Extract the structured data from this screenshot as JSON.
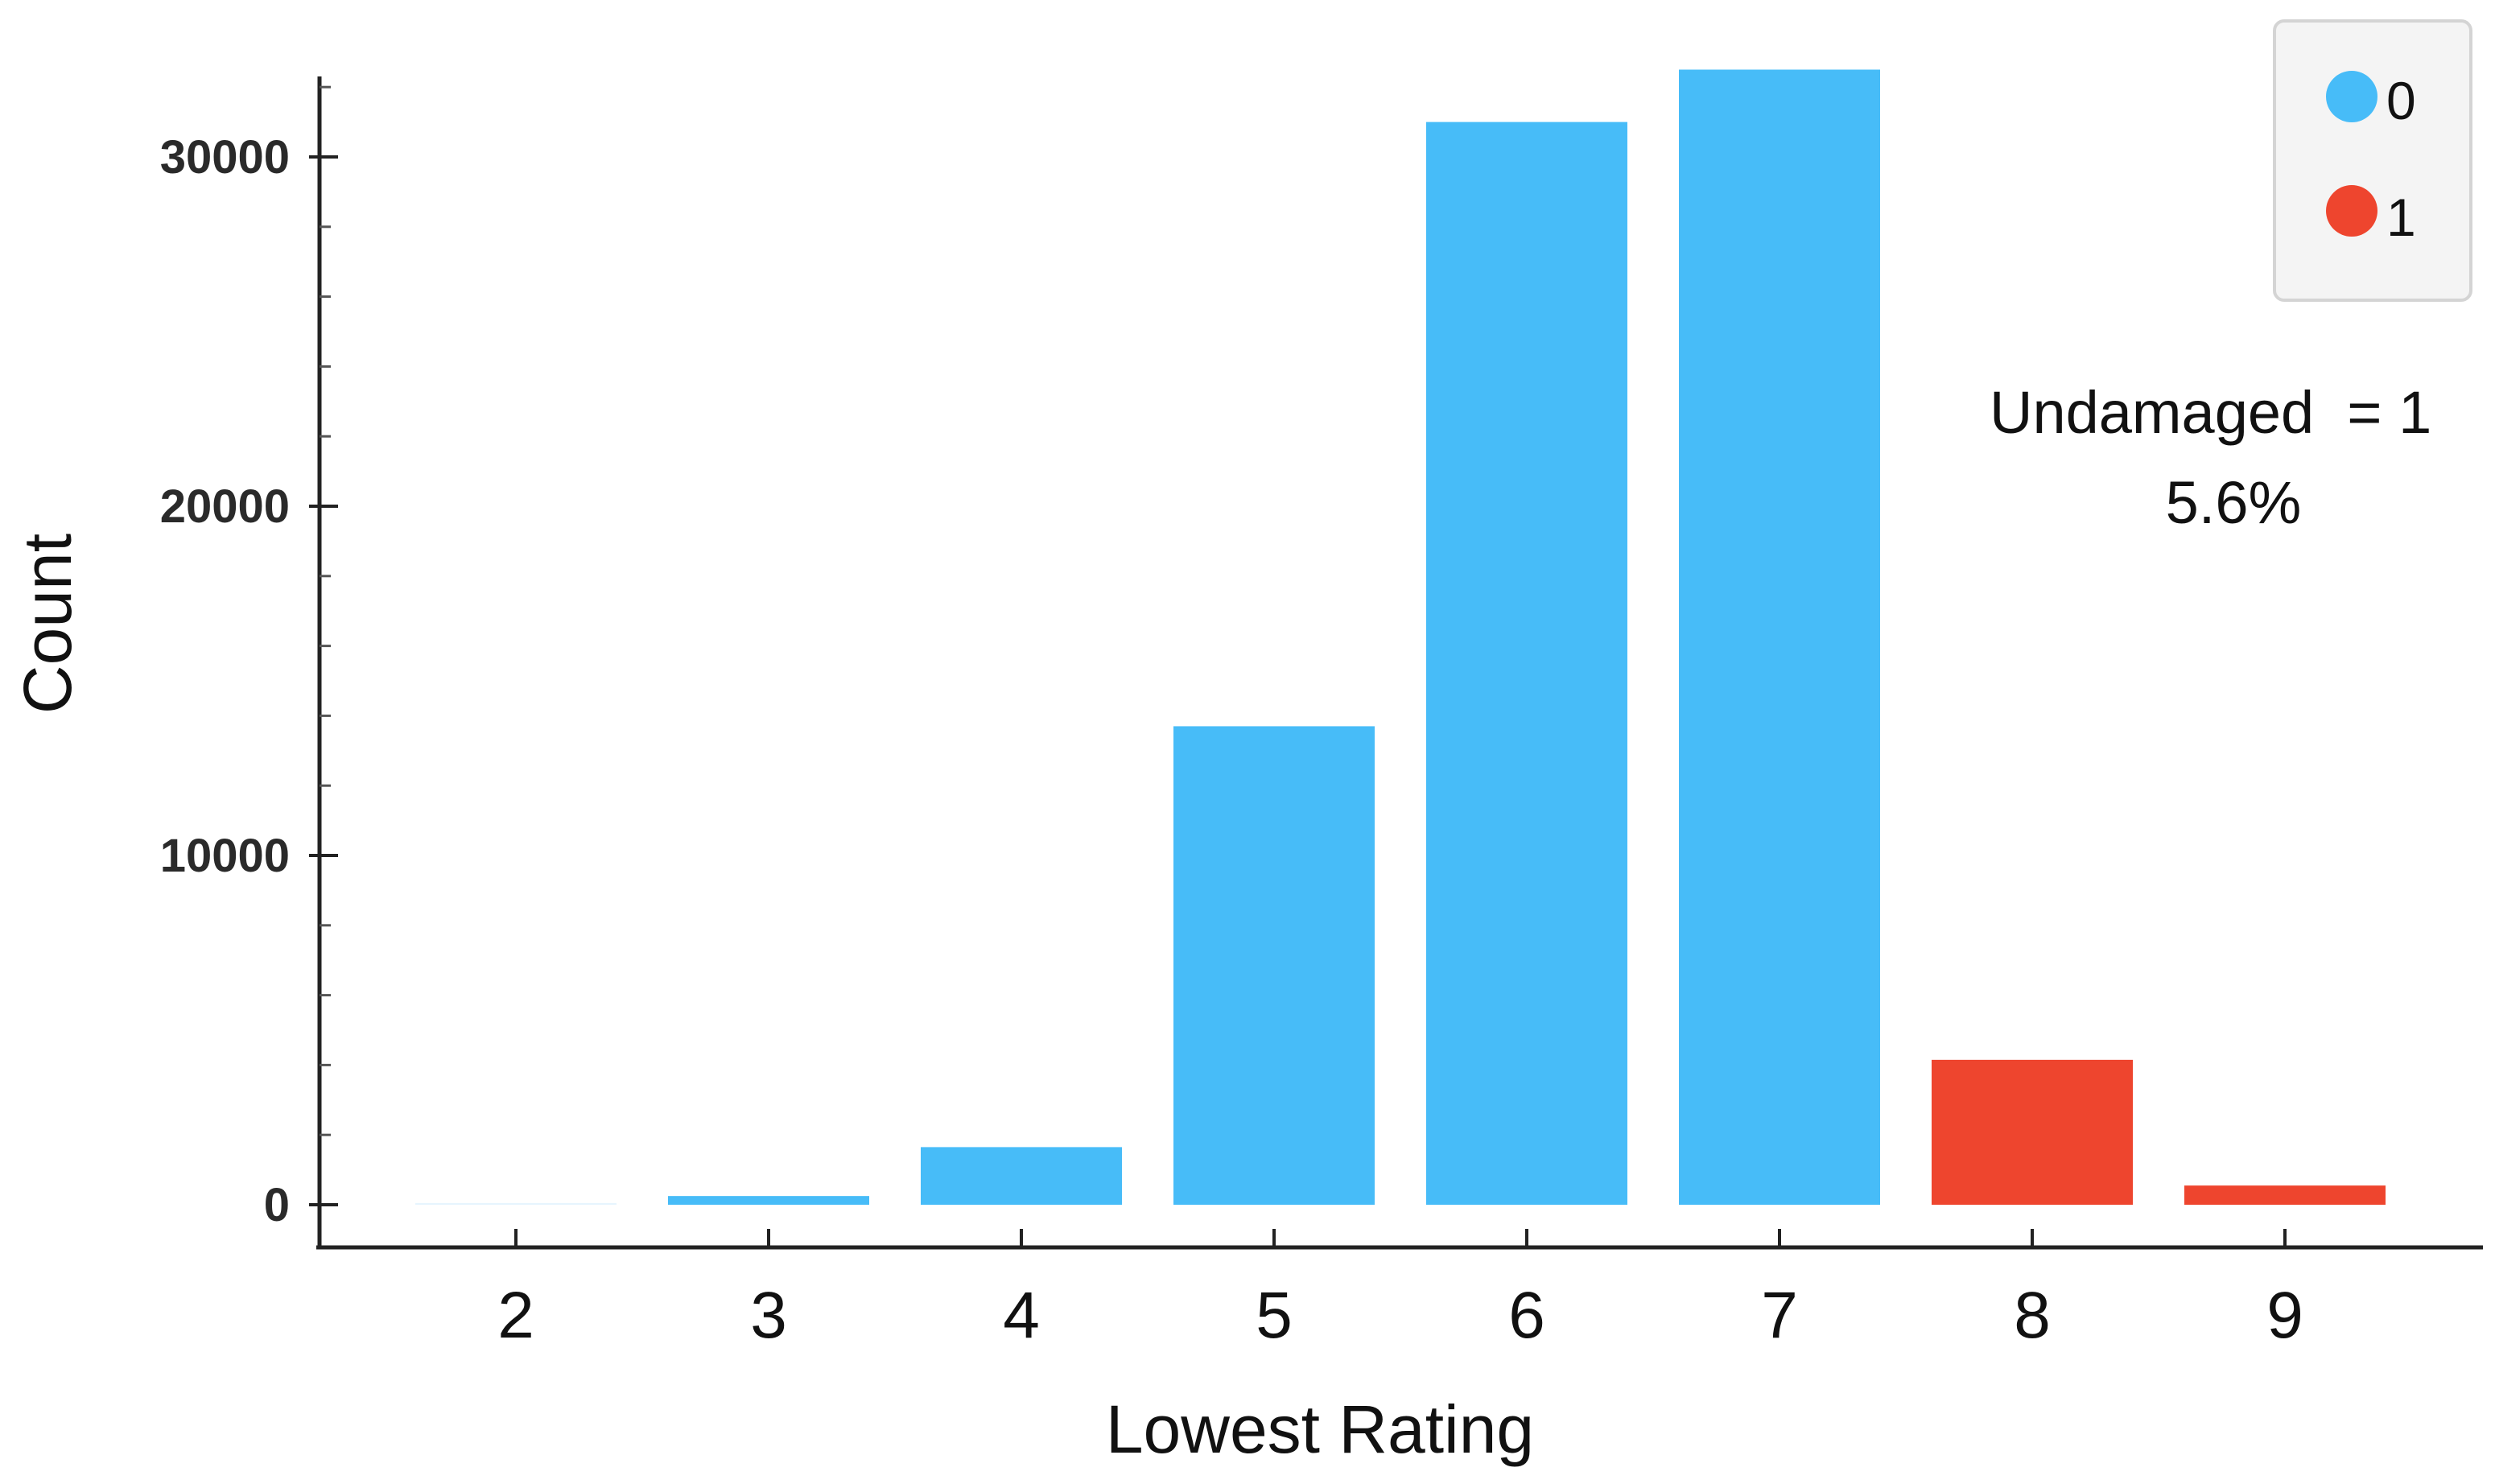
{
  "chart_data": {
    "type": "bar",
    "categories": [
      "2",
      "3",
      "4",
      "5",
      "6",
      "7",
      "8",
      "9"
    ],
    "values": [
      50,
      250,
      1650,
      13700,
      31000,
      32500,
      4150,
      550
    ],
    "groups": [
      "0",
      "0",
      "0",
      "0",
      "0",
      "0",
      "1",
      "1"
    ],
    "xlabel": "Lowest Rating",
    "ylabel": "Count",
    "ylim": [
      0,
      32500
    ],
    "yticks": [
      "0",
      "10000",
      "20000",
      "30000"
    ],
    "legend": {
      "placement": "top-right",
      "entries": [
        {
          "label": "0",
          "color": "#47bcf8"
        },
        {
          "label": "1",
          "color": "#ee452e"
        }
      ]
    },
    "annotation": {
      "line1": "Undamaged  = 1",
      "line2": "5.6%"
    },
    "grid": false
  }
}
